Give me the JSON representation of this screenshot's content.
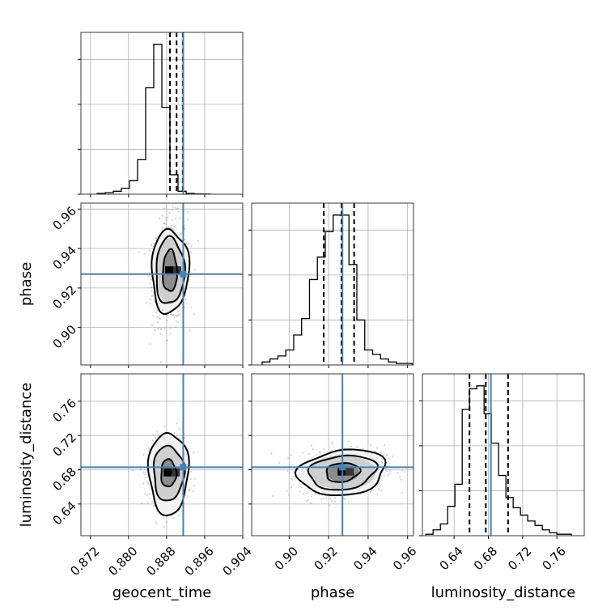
{
  "chart_data": {
    "type": "corner",
    "parameters": [
      "geocent_time",
      "phase",
      "luminosity_distance"
    ],
    "ranges": {
      "geocent_time": [
        0.87,
        0.904
      ],
      "phase": [
        0.881,
        0.963
      ],
      "luminosity_distance": [
        0.603,
        0.792
      ]
    },
    "ticks": {
      "geocent_time": {
        "values": [
          0.872,
          0.88,
          0.888,
          0.896,
          0.904
        ],
        "labels": [
          "0.872",
          "0.880",
          "0.888",
          "0.896",
          "0.904"
        ]
      },
      "phase": {
        "values": [
          0.9,
          0.92,
          0.94,
          0.96
        ],
        "labels": [
          "0.90",
          "0.92",
          "0.94",
          "0.96"
        ]
      },
      "luminosity_distance": {
        "values": [
          0.64,
          0.68,
          0.72,
          0.76
        ],
        "labels": [
          "0.64",
          "0.68",
          "0.72",
          "0.76"
        ]
      }
    },
    "truths": {
      "geocent_time": 0.8915,
      "phase": 0.927,
      "luminosity_distance": 0.683
    },
    "truth_color": "#4682b4",
    "quantiles": {
      "geocent_time": [
        0.8887,
        0.8901,
        0.8914
      ],
      "phase": [
        0.9175,
        0.9265,
        0.9329
      ],
      "luminosity_distance": [
        0.658,
        0.677,
        0.703
      ]
    },
    "histograms": {
      "geocent_time": {
        "edges": [
          0.8734,
          0.8751,
          0.8768,
          0.8785,
          0.8802,
          0.8819,
          0.8836,
          0.8853,
          0.887,
          0.8887,
          0.8904,
          0.8921,
          0.8938,
          0.8955,
          0.8972
        ],
        "values": [
          0.005,
          0.01,
          0.02,
          0.04,
          0.09,
          0.23,
          0.71,
          1.0,
          0.58,
          0.13,
          0.02,
          0.005,
          0.002,
          0.001
        ]
      },
      "phase": {
        "edges": [
          0.8863,
          0.8903,
          0.8943,
          0.8983,
          0.9023,
          0.9063,
          0.9103,
          0.9143,
          0.9183,
          0.9223,
          0.9263,
          0.9303,
          0.9343,
          0.9383,
          0.9423,
          0.9463,
          0.9503,
          0.9543,
          0.9583,
          0.9623
        ],
        "values": [
          0.02,
          0.04,
          0.06,
          0.1,
          0.2,
          0.31,
          0.57,
          0.72,
          0.89,
          1.0,
          1.0,
          0.67,
          0.3,
          0.1,
          0.07,
          0.04,
          0.02,
          0.01,
          0.01
        ]
      },
      "luminosity_distance": {
        "edges": [
          0.607,
          0.6155,
          0.624,
          0.6325,
          0.641,
          0.6495,
          0.658,
          0.6665,
          0.675,
          0.6835,
          0.692,
          0.7005,
          0.709,
          0.7175,
          0.726,
          0.7345,
          0.743,
          0.7515,
          0.76,
          0.7685,
          0.777
        ],
        "values": [
          0.01,
          0.04,
          0.08,
          0.2,
          0.35,
          0.86,
          1.0,
          1.02,
          0.83,
          0.63,
          0.41,
          0.26,
          0.19,
          0.14,
          0.1,
          0.07,
          0.04,
          0.02,
          0.01,
          0.01
        ]
      }
    },
    "contour_pairs": [
      {
        "x": "geocent_time",
        "y": "phase",
        "peak": [
          0.8887,
          0.9285
        ],
        "spread": [
          0.0015,
          0.0105
        ],
        "levels": [
          [
            1.0,
            1.0
          ],
          [
            2.0,
            1.6
          ],
          [
            2.6,
            2.0
          ]
        ],
        "skew": 0.12
      },
      {
        "x": "geocent_time",
        "y": "luminosity_distance",
        "peak": [
          0.8884,
          0.676
        ],
        "spread": [
          0.0016,
          0.016
        ],
        "levels": [
          [
            1.0,
            1.0
          ],
          [
            2.0,
            2.0
          ],
          [
            2.6,
            3.0
          ]
        ],
        "skew": 0.0
      },
      {
        "x": "phase",
        "y": "luminosity_distance",
        "peak": [
          0.927,
          0.677
        ],
        "spread": [
          0.0085,
          0.011
        ],
        "levels": [
          [
            1.0,
            1.0
          ],
          [
            2.0,
            1.8
          ],
          [
            2.6,
            2.4
          ]
        ],
        "skew": 0.15
      }
    ],
    "grid": true
  }
}
